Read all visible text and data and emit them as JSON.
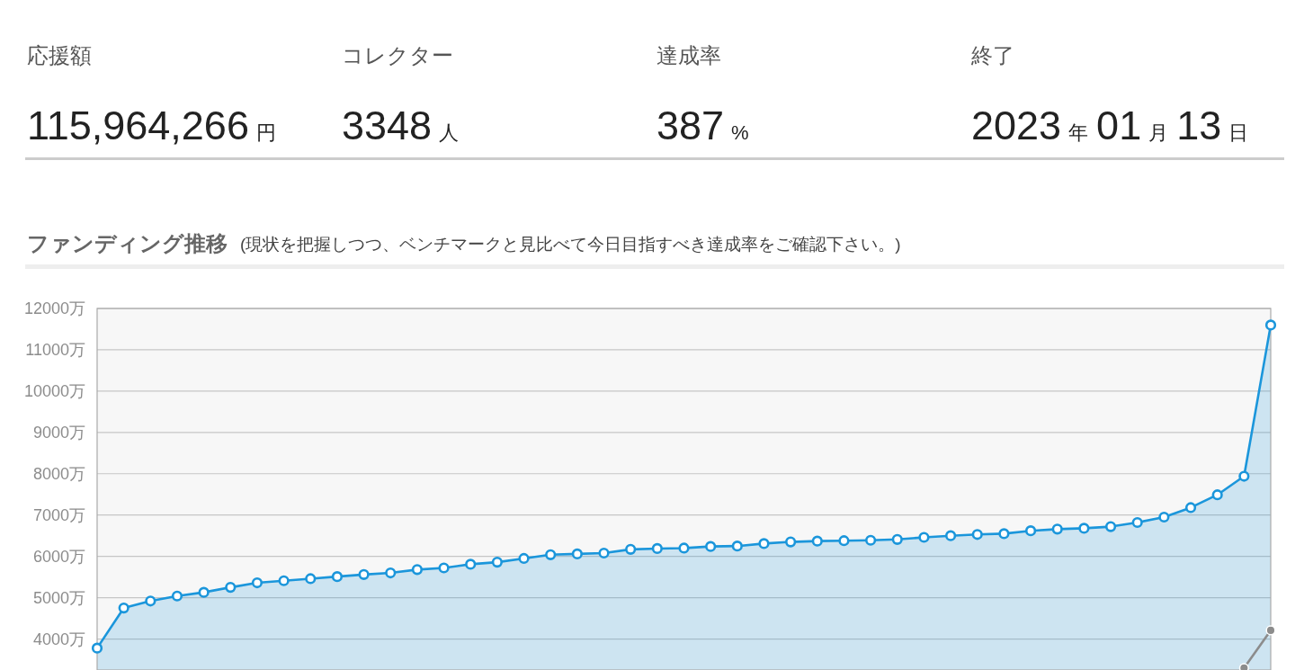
{
  "chart_data": [
    {
      "type": "other",
      "title": "応援額",
      "annotations": [
        "115,964,266",
        "円"
      ]
    },
    {
      "type": "other",
      "title": "コレクター",
      "annotations": [
        "3348",
        "人"
      ]
    },
    {
      "type": "other",
      "title": "達成率",
      "annotations": [
        "387",
        "%"
      ]
    },
    {
      "type": "other",
      "title": "終了",
      "annotations": [
        "2023",
        "年",
        "01",
        "月",
        "13",
        "日"
      ]
    },
    {
      "type": "area",
      "title": "ファンディング推移",
      "subtitle": "(現状を把握しつつ、ベンチマークと見比べて今日目指すべき達成率をご確認下さい。)",
      "categories": [
        null,
        null,
        null,
        null,
        null,
        null,
        null,
        null,
        null,
        null,
        null,
        null,
        null,
        null,
        null,
        null,
        null,
        null,
        null,
        null,
        null,
        null,
        null,
        null,
        null,
        null,
        null,
        null,
        null,
        null,
        null,
        null,
        null,
        null,
        null,
        null,
        null,
        null,
        null,
        null,
        null,
        null,
        null,
        null,
        null
      ],
      "ylim": [
        3250,
        12000
      ],
      "yticks": [
        {
          "value": 4000,
          "label": "4000万"
        },
        {
          "value": 5000,
          "label": "5000万"
        },
        {
          "value": 6000,
          "label": "6000万"
        },
        {
          "value": 7000,
          "label": "7000万"
        },
        {
          "value": 8000,
          "label": "8000万"
        },
        {
          "value": 9000,
          "label": "9000万"
        },
        {
          "value": 10000,
          "label": "10000万"
        },
        {
          "value": 11000,
          "label": "11000万"
        },
        {
          "value": 12000,
          "label": "12000万"
        }
      ],
      "tick_labels": "y",
      "grid": "y",
      "marker": "circle",
      "series": [
        {
          "color": "#1b96db",
          "values": [
            3780,
            4750,
            4920,
            5040,
            5130,
            5250,
            5360,
            5410,
            5460,
            5510,
            5560,
            5600,
            5680,
            5720,
            5810,
            5860,
            5950,
            6040,
            6060,
            6080,
            6170,
            6190,
            6200,
            6240,
            6250,
            6310,
            6350,
            6370,
            6380,
            6390,
            6410,
            6460,
            6500,
            6530,
            6550,
            6620,
            6660,
            6680,
            6720,
            6820,
            6950,
            7180,
            7490,
            7940,
            11600
          ]
        },
        {
          "type": "line",
          "color": "#8c8c8c",
          "values": [
            null,
            null,
            null,
            null,
            null,
            null,
            null,
            null,
            null,
            null,
            null,
            null,
            null,
            null,
            null,
            null,
            null,
            null,
            null,
            null,
            null,
            null,
            null,
            null,
            null,
            null,
            null,
            null,
            null,
            null,
            null,
            null,
            null,
            null,
            null,
            null,
            null,
            null,
            null,
            null,
            null,
            null,
            null,
            3300,
            4210
          ]
        }
      ]
    }
  ]
}
